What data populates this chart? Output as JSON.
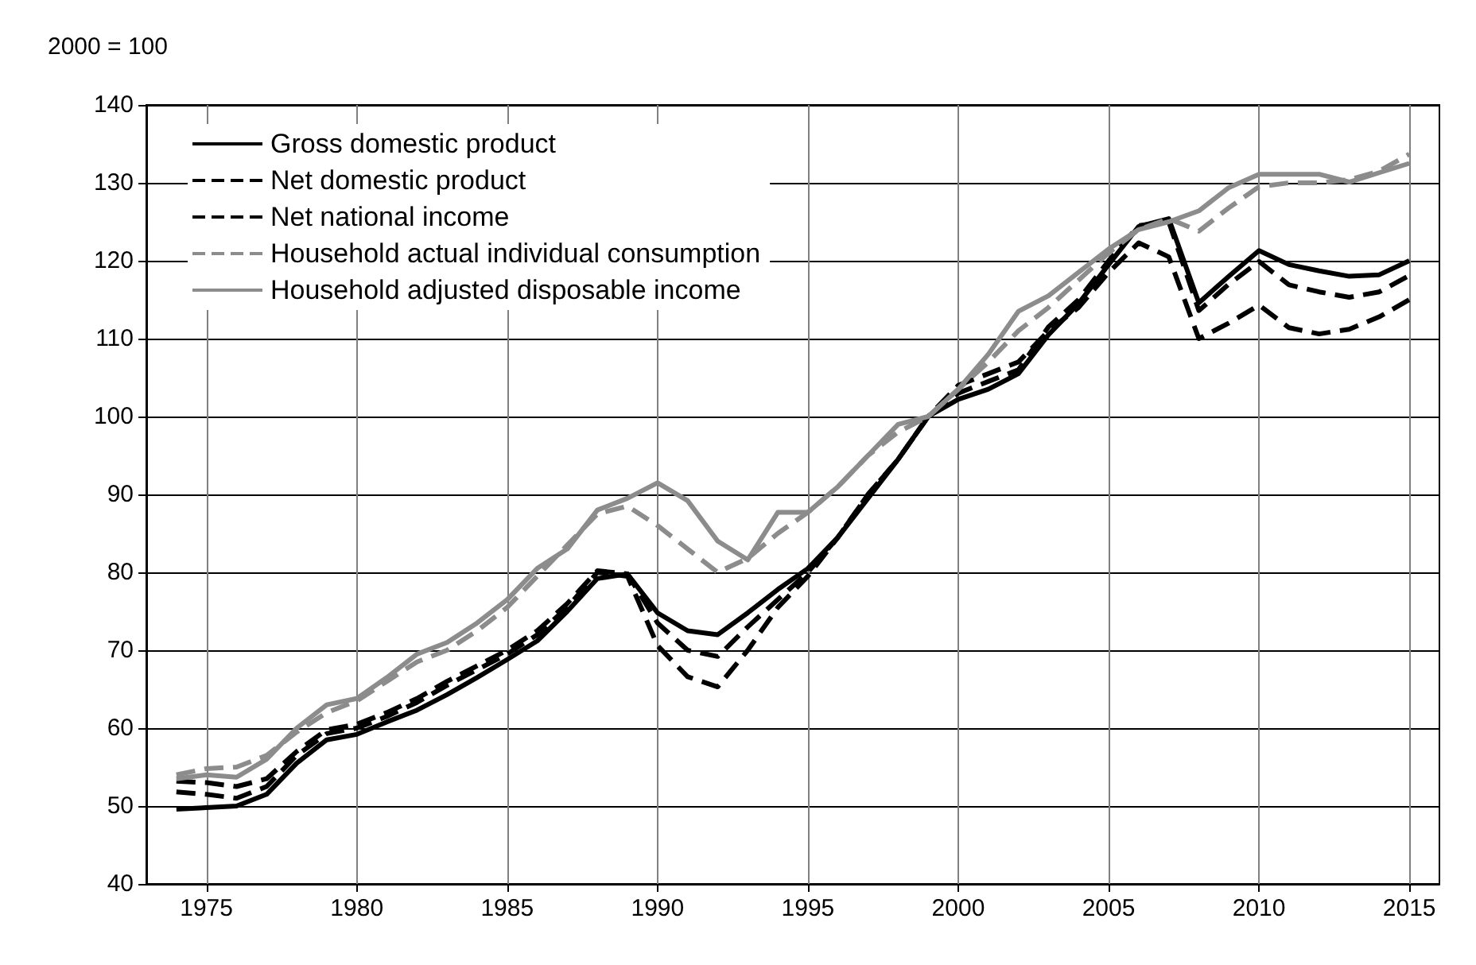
{
  "chart_data": {
    "type": "line",
    "ylabel": "2000 = 100",
    "x": [
      1974,
      1975,
      1976,
      1977,
      1978,
      1979,
      1980,
      1981,
      1982,
      1983,
      1984,
      1985,
      1986,
      1987,
      1988,
      1989,
      1990,
      1991,
      1992,
      1993,
      1994,
      1995,
      1996,
      1997,
      1998,
      1999,
      2000,
      2001,
      2002,
      2003,
      2004,
      2005,
      2006,
      2007,
      2008,
      2009,
      2010,
      2011,
      2012,
      2013,
      2014,
      2015
    ],
    "series": [
      {
        "name": "Gross domestic product",
        "color": "#000000",
        "line_style": "solid",
        "values": [
          49.6,
          49.8,
          50,
          51.5,
          55.5,
          58.5,
          59.2,
          60.8,
          62.3,
          64.3,
          66.5,
          68.8,
          71.2,
          75,
          79.2,
          79.8,
          74.8,
          72.5,
          72,
          74.8,
          77.8,
          80.5,
          84.5,
          89.5,
          94.5,
          100,
          102.2,
          103.5,
          105.5,
          110.5,
          114.5,
          119.5,
          124.4,
          125.4,
          114.6,
          118,
          121.3,
          119.5,
          118.7,
          118,
          118.2,
          120
        ]
      },
      {
        "name": "Net domestic product",
        "color": "#000000",
        "line_style": "dashed",
        "values": [
          53.2,
          53,
          52.5,
          53.5,
          57,
          59.8,
          60.5,
          62,
          63.8,
          66,
          68,
          70,
          72.5,
          76,
          80.2,
          79.8,
          73.5,
          70,
          69.2,
          73,
          76.5,
          80,
          84.5,
          90,
          94.5,
          100,
          103,
          104.5,
          106,
          111.5,
          115,
          120,
          124.5,
          125,
          113.6,
          117,
          119.9,
          116.9,
          116,
          115.3,
          116,
          118.1
        ]
      },
      {
        "name": "Net national income",
        "color": "#000000",
        "line_style": "dashed",
        "values": [
          51.8,
          51.5,
          51,
          52.5,
          56.5,
          59.3,
          60,
          61.5,
          63.3,
          65.5,
          67.5,
          69.5,
          72,
          75.5,
          80,
          79.5,
          70.6,
          66.6,
          65.3,
          70,
          75.5,
          79.5,
          84.5,
          90,
          94.5,
          100,
          104,
          105.5,
          107,
          111,
          114,
          118.5,
          122.3,
          120.5,
          110,
          112,
          114.3,
          111.4,
          110.6,
          111.2,
          112.8,
          115
        ]
      },
      {
        "name": "Household actual individual consumption",
        "color": "#8c8c8c",
        "line_style": "dashed",
        "values": [
          54,
          54.8,
          55,
          56.5,
          59.5,
          62,
          63.5,
          66,
          68.5,
          70,
          72.5,
          75.5,
          79.5,
          83.5,
          87.5,
          88.5,
          86,
          83,
          80,
          81.8,
          85,
          87.7,
          91,
          95,
          98,
          100,
          103.5,
          107,
          111,
          114,
          117.5,
          121,
          124,
          125.4,
          123.8,
          126.8,
          129.5,
          130,
          130,
          130.4,
          131.5,
          133.7
        ]
      },
      {
        "name": "Household adjusted disposable income",
        "color": "#8c8c8c",
        "line_style": "solid",
        "values": [
          53.5,
          54,
          53.7,
          56,
          60,
          63,
          63.8,
          66.5,
          69.5,
          71,
          73.5,
          76.5,
          80.5,
          83,
          88,
          89.5,
          91.5,
          89.2,
          84,
          81.6,
          87.7,
          87.7,
          91,
          95,
          99,
          100,
          103.5,
          108,
          113.5,
          115.5,
          118.5,
          121.5,
          124,
          125,
          126.4,
          129.4,
          131.1,
          131.1,
          131.1,
          130.1,
          131.3,
          132.5
        ]
      }
    ],
    "xlim": [
      1973,
      2016
    ],
    "xticks": [
      1975,
      1980,
      1985,
      1990,
      1995,
      2000,
      2005,
      2010,
      2015
    ],
    "ylim": [
      40,
      140
    ],
    "yticks": [
      40,
      50,
      60,
      70,
      80,
      90,
      100,
      110,
      120,
      130,
      140
    ],
    "grid": true,
    "legend": "top left",
    "marker": "none"
  }
}
